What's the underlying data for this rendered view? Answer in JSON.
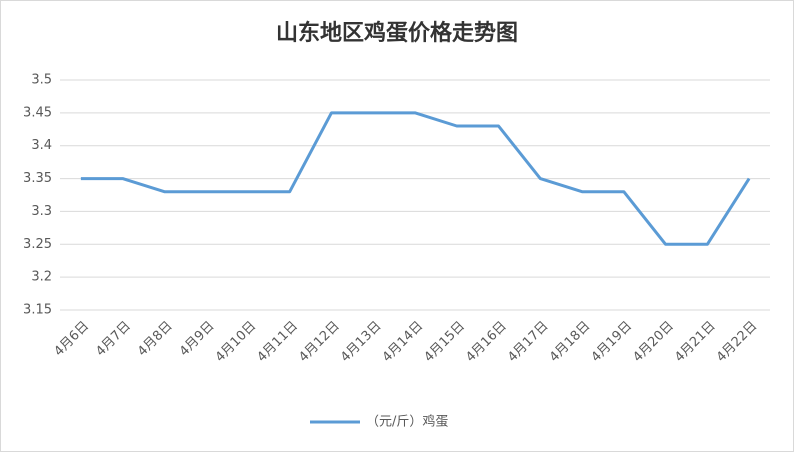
{
  "chart_data": {
    "type": "line",
    "title": "山东地区鸡蛋价格走势图",
    "categories": [
      "4月6日",
      "4月7日",
      "4月8日",
      "4月9日",
      "4月10日",
      "4月11日",
      "4月12日",
      "4月13日",
      "4月14日",
      "4月15日",
      "4月16日",
      "4月17日",
      "4月18日",
      "4月19日",
      "4月20日",
      "4月21日",
      "4月22日"
    ],
    "series": [
      {
        "name": "（元/斤）鸡蛋",
        "color": "#5b9bd5",
        "values": [
          3.35,
          3.35,
          3.33,
          3.33,
          3.33,
          3.33,
          3.45,
          3.45,
          3.45,
          3.43,
          3.43,
          3.35,
          3.33,
          3.33,
          3.25,
          3.25,
          3.35
        ]
      }
    ],
    "ylim": [
      3.15,
      3.5
    ],
    "yticks": [
      3.15,
      3.2,
      3.25,
      3.3,
      3.35,
      3.4,
      3.45,
      3.5
    ],
    "grid": true,
    "legend": "bottom"
  }
}
